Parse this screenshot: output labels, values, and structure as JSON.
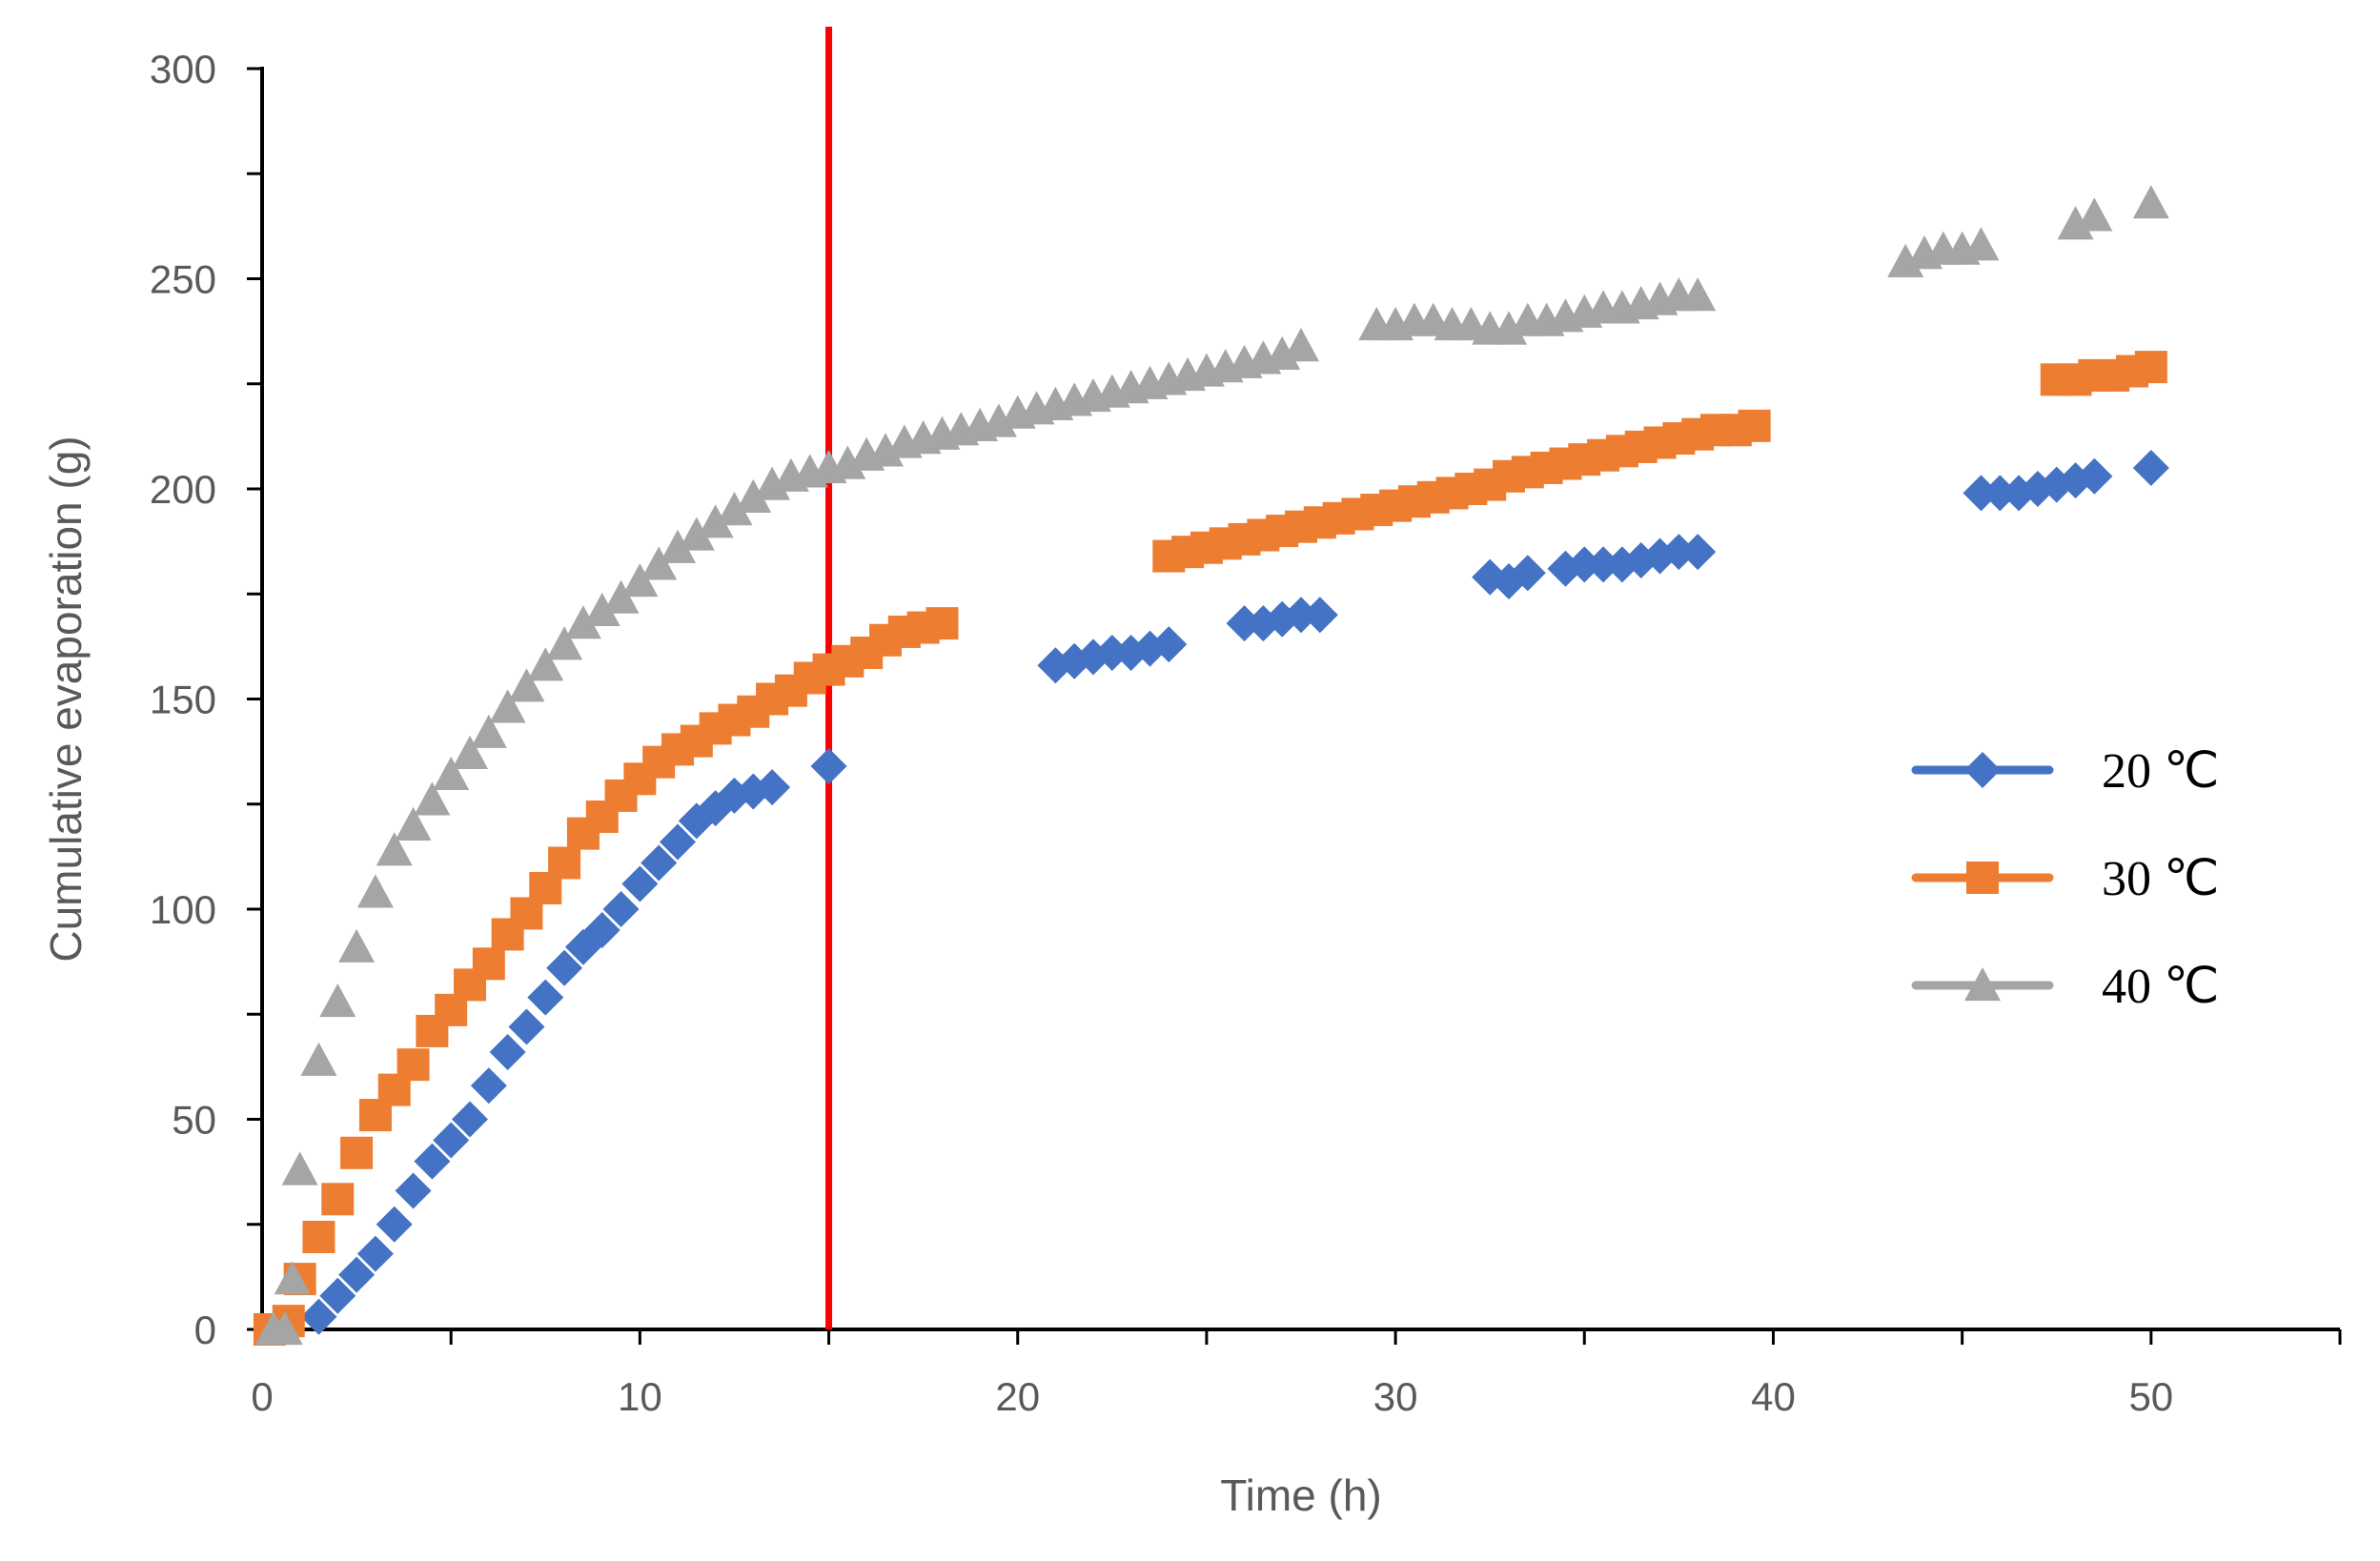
{
  "chart_data": {
    "type": "scatter",
    "title": "",
    "xlabel": "Time (h)",
    "ylabel": "Cumulative evaporation (g)",
    "xlim": [
      0,
      55
    ],
    "ylim": [
      0,
      300
    ],
    "x_ticks": [
      0,
      10,
      20,
      30,
      40,
      50
    ],
    "y_ticks": [
      0,
      50,
      100,
      150,
      200,
      250,
      300
    ],
    "x_minor_step": 5,
    "y_minor_step": 25,
    "grid": false,
    "legend_position": "right",
    "reference_line": {
      "x": 15,
      "color": "#FF0000"
    },
    "series": [
      {
        "name": "20 ℃",
        "color": "#4472C4",
        "marker": "diamond",
        "points": [
          [
            1.5,
            3
          ],
          [
            2,
            8
          ],
          [
            2.5,
            13
          ],
          [
            3,
            18
          ],
          [
            3.5,
            25
          ],
          [
            4,
            33
          ],
          [
            4.5,
            40
          ],
          [
            5,
            45
          ],
          [
            5.5,
            50
          ],
          [
            6,
            58
          ],
          [
            6.5,
            66
          ],
          [
            7,
            72
          ],
          [
            7.5,
            79
          ],
          [
            8,
            86
          ],
          [
            8.5,
            91
          ],
          [
            9,
            95
          ],
          [
            9.5,
            100
          ],
          [
            10,
            106
          ],
          [
            10.5,
            111
          ],
          [
            11,
            116
          ],
          [
            11.5,
            121
          ],
          [
            12,
            124
          ],
          [
            12.5,
            127
          ],
          [
            13,
            128
          ],
          [
            13.5,
            129
          ],
          [
            15,
            134
          ],
          [
            21,
            158
          ],
          [
            21.5,
            159
          ],
          [
            22,
            160
          ],
          [
            22.5,
            161
          ],
          [
            23,
            161
          ],
          [
            23.5,
            162
          ],
          [
            24,
            163
          ],
          [
            26,
            168
          ],
          [
            26.5,
            168
          ],
          [
            27,
            169
          ],
          [
            27.5,
            170
          ],
          [
            28,
            170
          ],
          [
            32.5,
            179
          ],
          [
            33,
            178
          ],
          [
            33.5,
            180
          ],
          [
            34.5,
            181
          ],
          [
            35,
            182
          ],
          [
            35.5,
            182
          ],
          [
            36,
            182
          ],
          [
            36.5,
            183
          ],
          [
            37,
            184
          ],
          [
            37.5,
            185
          ],
          [
            38,
            185
          ],
          [
            45.5,
            199
          ],
          [
            46,
            199
          ],
          [
            46.5,
            199
          ],
          [
            47,
            200
          ],
          [
            47.5,
            201
          ],
          [
            48,
            202
          ],
          [
            48.5,
            203
          ],
          [
            50,
            205
          ]
        ]
      },
      {
        "name": "30 ℃",
        "color": "#ED7D31",
        "marker": "square",
        "points": [
          [
            0.2,
            0
          ],
          [
            0.7,
            2
          ],
          [
            1,
            12
          ],
          [
            1.5,
            22
          ],
          [
            2,
            31
          ],
          [
            2.5,
            42
          ],
          [
            3,
            51
          ],
          [
            3.5,
            57
          ],
          [
            4,
            63
          ],
          [
            4.5,
            71
          ],
          [
            5,
            76
          ],
          [
            5.5,
            82
          ],
          [
            6,
            87
          ],
          [
            6.5,
            94
          ],
          [
            7,
            99
          ],
          [
            7.5,
            105
          ],
          [
            8,
            111
          ],
          [
            8.5,
            118
          ],
          [
            9,
            122
          ],
          [
            9.5,
            127
          ],
          [
            10,
            131
          ],
          [
            10.5,
            135
          ],
          [
            11,
            138
          ],
          [
            11.5,
            140
          ],
          [
            12,
            143
          ],
          [
            12.5,
            145
          ],
          [
            13,
            147
          ],
          [
            13.5,
            150
          ],
          [
            14,
            152
          ],
          [
            14.5,
            155
          ],
          [
            15,
            157
          ],
          [
            15.5,
            159
          ],
          [
            16,
            161
          ],
          [
            16.5,
            164
          ],
          [
            17,
            166
          ],
          [
            17.5,
            167
          ],
          [
            18,
            168
          ],
          [
            24,
            184
          ],
          [
            24.5,
            185
          ],
          [
            25,
            186
          ],
          [
            25.5,
            187
          ],
          [
            26,
            188
          ],
          [
            26.5,
            189
          ],
          [
            27,
            190
          ],
          [
            27.5,
            191
          ],
          [
            28,
            192
          ],
          [
            28.5,
            193
          ],
          [
            29,
            194
          ],
          [
            29.5,
            195
          ],
          [
            30,
            196
          ],
          [
            30.5,
            197
          ],
          [
            31,
            198
          ],
          [
            31.5,
            199
          ],
          [
            32,
            200
          ],
          [
            32.5,
            201
          ],
          [
            33,
            203
          ],
          [
            33.5,
            204
          ],
          [
            34,
            205
          ],
          [
            34.5,
            206
          ],
          [
            35,
            207
          ],
          [
            35.5,
            208
          ],
          [
            36,
            209
          ],
          [
            36.5,
            210
          ],
          [
            37,
            211
          ],
          [
            37.5,
            212
          ],
          [
            38,
            213
          ],
          [
            38.5,
            214
          ],
          [
            39,
            214
          ],
          [
            39.5,
            215
          ],
          [
            47.5,
            226
          ],
          [
            48,
            226
          ],
          [
            48.5,
            227
          ],
          [
            49,
            227
          ],
          [
            49.5,
            228
          ],
          [
            50,
            229
          ]
        ]
      },
      {
        "name": "40 ℃",
        "color": "#A5A5A5",
        "marker": "triangle",
        "points": [
          [
            0.3,
            0
          ],
          [
            0.6,
            0
          ],
          [
            0.8,
            12
          ],
          [
            1,
            38
          ],
          [
            1.5,
            64
          ],
          [
            2,
            78
          ],
          [
            2.5,
            91
          ],
          [
            3,
            104
          ],
          [
            3.5,
            114
          ],
          [
            4,
            120
          ],
          [
            4.5,
            126
          ],
          [
            5,
            132
          ],
          [
            5.5,
            137
          ],
          [
            6,
            142
          ],
          [
            6.5,
            148
          ],
          [
            7,
            153
          ],
          [
            7.5,
            158
          ],
          [
            8,
            163
          ],
          [
            8.5,
            168
          ],
          [
            9,
            171
          ],
          [
            9.5,
            174
          ],
          [
            10,
            178
          ],
          [
            10.5,
            182
          ],
          [
            11,
            186
          ],
          [
            11.5,
            189
          ],
          [
            12,
            192
          ],
          [
            12.5,
            195
          ],
          [
            13,
            198
          ],
          [
            13.5,
            201
          ],
          [
            14,
            203
          ],
          [
            14.5,
            204
          ],
          [
            15,
            205
          ],
          [
            15.5,
            206
          ],
          [
            16,
            208
          ],
          [
            16.5,
            209
          ],
          [
            17,
            211
          ],
          [
            17.5,
            212
          ],
          [
            18,
            213
          ],
          [
            18.5,
            214
          ],
          [
            19,
            215
          ],
          [
            19.5,
            216
          ],
          [
            20,
            218
          ],
          [
            20.5,
            219
          ],
          [
            21,
            220
          ],
          [
            21.5,
            221
          ],
          [
            22,
            222
          ],
          [
            22.5,
            223
          ],
          [
            23,
            224
          ],
          [
            23.5,
            225
          ],
          [
            24,
            226
          ],
          [
            24.5,
            227
          ],
          [
            25,
            228
          ],
          [
            25.5,
            229
          ],
          [
            26,
            230
          ],
          [
            26.5,
            231
          ],
          [
            27,
            232
          ],
          [
            27.5,
            234
          ],
          [
            29.5,
            239
          ],
          [
            30,
            239
          ],
          [
            30.5,
            240
          ],
          [
            31,
            240
          ],
          [
            31.5,
            239
          ],
          [
            32,
            239
          ],
          [
            32.5,
            238
          ],
          [
            33,
            238
          ],
          [
            33.5,
            240
          ],
          [
            34,
            240
          ],
          [
            34.5,
            241
          ],
          [
            35,
            242
          ],
          [
            35.5,
            243
          ],
          [
            36,
            243
          ],
          [
            36.5,
            244
          ],
          [
            37,
            245
          ],
          [
            37.5,
            246
          ],
          [
            38,
            246
          ],
          [
            43.5,
            254
          ],
          [
            44,
            256
          ],
          [
            44.5,
            257
          ],
          [
            45,
            257
          ],
          [
            45.5,
            258
          ],
          [
            48,
            263
          ],
          [
            48.5,
            265
          ],
          [
            50,
            268
          ]
        ]
      }
    ]
  }
}
